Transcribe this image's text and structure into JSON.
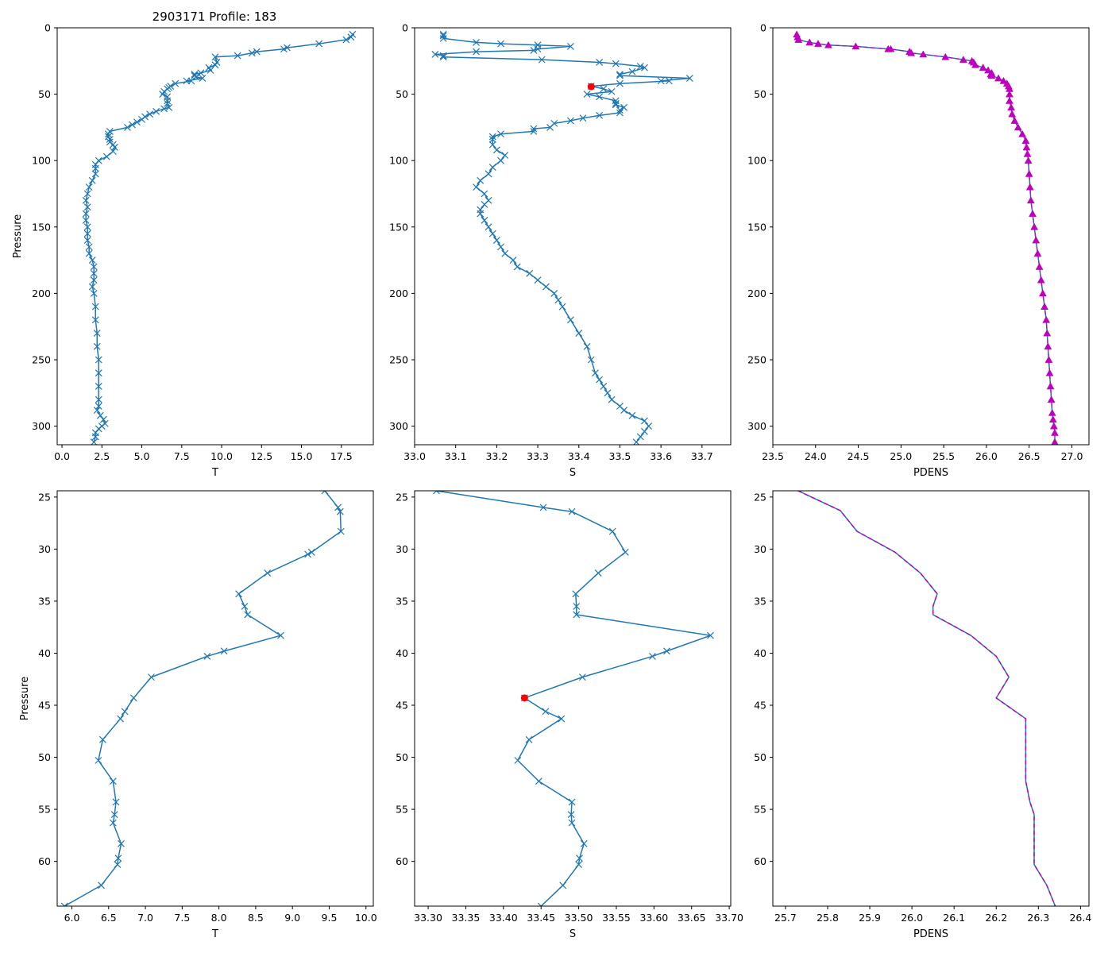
{
  "figure_title": "2903171 Profile: 183",
  "colors": {
    "line": "#1f77b4",
    "marker_x": "#1f77b4",
    "highlight": "#ff0000",
    "density_marker": "#bf00bf",
    "density_dash": "#bf00bf"
  },
  "chart_data": [
    {
      "id": "top-temperature",
      "type": "line",
      "title": "2903171 Profile: 183",
      "xlabel": "T",
      "ylabel": "Pressure",
      "xlim": [
        -0.3,
        19.5
      ],
      "ylim": [
        314,
        0
      ],
      "xticks": [
        0.0,
        2.5,
        5.0,
        7.5,
        10.0,
        12.5,
        15.0,
        17.5
      ],
      "xtick_labels": [
        "0.0",
        "2.5",
        "5.0",
        "7.5",
        "10.0",
        "12.5",
        "15.0",
        "17.5"
      ],
      "yticks": [
        0,
        50,
        100,
        150,
        200,
        250,
        300
      ],
      "ytick_labels": [
        "0",
        "50",
        "100",
        "150",
        "200",
        "250",
        "300"
      ],
      "marker": "x",
      "series": [
        {
          "name": "T",
          "x": [
            18.2,
            18.1,
            17.8,
            16.1,
            14.1,
            13.9,
            12.2,
            11.9,
            11.0,
            9.6,
            9.7,
            9.6,
            9.2,
            9.3,
            8.7,
            8.3,
            8.3,
            8.4,
            8.8,
            7.8,
            8.1,
            7.1,
            6.8,
            6.7,
            6.6,
            6.4,
            6.3,
            6.6,
            6.6,
            6.6,
            6.7,
            6.4,
            5.9,
            5.5,
            5.2,
            5.0,
            4.7,
            4.4,
            4.1,
            3.0,
            2.9,
            2.9,
            3.0,
            3.0,
            3.2,
            3.3,
            3.2,
            2.8,
            2.3,
            2.1,
            2.1,
            2.1,
            1.9,
            1.7,
            1.6,
            1.5,
            1.6,
            1.5,
            1.5,
            1.6,
            1.6,
            1.6,
            1.7,
            1.7,
            1.9,
            2.0,
            2.0,
            2.0,
            1.9,
            2.0,
            2.1,
            2.1,
            2.2,
            2.2,
            2.3,
            2.3,
            2.3,
            2.3,
            2.3,
            2.2,
            2.4,
            2.6,
            2.7,
            2.5,
            2.3,
            2.1,
            2.1,
            2.0
          ],
          "y": [
            5,
            7,
            9,
            12,
            15,
            16,
            18,
            19,
            21,
            22,
            26,
            28,
            30,
            32,
            34,
            35,
            36,
            37,
            38,
            40,
            40,
            42,
            44,
            45,
            46,
            48,
            50,
            52,
            55,
            57,
            60,
            61,
            63,
            65,
            67,
            69,
            71,
            73,
            75,
            78,
            80,
            82,
            84,
            86,
            88,
            90,
            93,
            97,
            100,
            103,
            106,
            110,
            115,
            120,
            125,
            130,
            135,
            140,
            145,
            150,
            155,
            160,
            165,
            170,
            175,
            180,
            185,
            190,
            195,
            200,
            210,
            220,
            230,
            240,
            250,
            260,
            270,
            280,
            285,
            288,
            292,
            295,
            298,
            300,
            302,
            305,
            308,
            312
          ]
        }
      ]
    },
    {
      "id": "top-salinity",
      "type": "line",
      "xlabel": "S",
      "ylabel": "",
      "xlim": [
        33.0,
        33.77
      ],
      "ylim": [
        314,
        0
      ],
      "xticks": [
        33.0,
        33.1,
        33.2,
        33.3,
        33.4,
        33.5,
        33.6,
        33.7
      ],
      "xtick_labels": [
        "33.0",
        "33.1",
        "33.2",
        "33.3",
        "33.4",
        "33.5",
        "33.6",
        "33.7"
      ],
      "yticks": [
        0,
        50,
        100,
        150,
        200,
        250,
        300
      ],
      "ytick_labels": [
        "0",
        "50",
        "100",
        "150",
        "200",
        "250",
        "300"
      ],
      "marker": "x",
      "series": [
        {
          "name": "S",
          "x": [
            33.07,
            33.07,
            33.07,
            33.15,
            33.21,
            33.3,
            33.38,
            33.3,
            33.29,
            33.15,
            33.05,
            33.07,
            33.07,
            33.31,
            33.45,
            33.49,
            33.55,
            33.56,
            33.53,
            33.5,
            33.5,
            33.67,
            33.6,
            33.62,
            33.5,
            33.43,
            33.46,
            33.48,
            33.42,
            33.45,
            33.49,
            33.49,
            33.49,
            33.51,
            33.5,
            33.5,
            33.45,
            33.41,
            33.38,
            33.34,
            33.33,
            33.29,
            33.29,
            33.21,
            33.19,
            33.19,
            33.19,
            33.2,
            33.22,
            33.21,
            33.19,
            33.18,
            33.16,
            33.15,
            33.17,
            33.18,
            33.17,
            33.16,
            33.16,
            33.17,
            33.18,
            33.19,
            33.2,
            33.21,
            33.22,
            33.24,
            33.25,
            33.28,
            33.3,
            33.32,
            33.34,
            33.35,
            33.36,
            33.38,
            33.4,
            33.42,
            33.43,
            33.44,
            33.45,
            33.46,
            33.47,
            33.48,
            33.5,
            33.51,
            33.53,
            33.56,
            33.57,
            33.56,
            33.55,
            33.54
          ],
          "y": [
            5,
            6,
            8,
            11,
            12,
            13,
            14,
            16,
            17,
            18,
            20,
            21,
            22,
            24,
            26,
            27,
            29,
            30,
            33,
            35,
            36,
            38,
            40,
            40,
            42,
            44,
            46,
            48,
            50,
            52,
            55,
            57,
            58,
            60,
            62,
            64,
            66,
            68,
            70,
            72,
            75,
            76,
            78,
            80,
            82,
            84,
            88,
            92,
            96,
            100,
            105,
            110,
            115,
            120,
            125,
            130,
            133,
            137,
            140,
            145,
            150,
            155,
            160,
            165,
            170,
            175,
            180,
            185,
            190,
            195,
            200,
            205,
            210,
            220,
            230,
            240,
            250,
            260,
            265,
            270,
            275,
            280,
            285,
            288,
            292,
            296,
            300,
            304,
            308,
            312
          ]
        }
      ],
      "highlight_point": {
        "x": 33.43,
        "y": 44.3
      }
    },
    {
      "id": "top-density",
      "type": "line",
      "xlabel": "PDENS",
      "ylabel": "",
      "xlim": [
        23.5,
        27.2
      ],
      "ylim": [
        314,
        0
      ],
      "xticks": [
        23.5,
        24.0,
        24.5,
        25.0,
        25.5,
        26.0,
        26.5,
        27.0
      ],
      "xtick_labels": [
        "23.5",
        "24.0",
        "24.5",
        "25.0",
        "25.5",
        "26.0",
        "26.5",
        "27.0"
      ],
      "yticks": [
        0,
        50,
        100,
        150,
        200,
        250,
        300
      ],
      "ytick_labels": [
        "0",
        "50",
        "100",
        "150",
        "200",
        "250",
        "300"
      ],
      "marker": "^",
      "series": [
        {
          "name": "PDENS",
          "x": [
            23.78,
            23.79,
            23.8,
            23.93,
            24.03,
            24.15,
            24.47,
            24.85,
            24.88,
            25.1,
            25.12,
            25.26,
            25.52,
            25.73,
            25.83,
            25.85,
            25.87,
            25.96,
            26.02,
            26.06,
            26.05,
            26.06,
            26.14,
            26.2,
            26.24,
            26.26,
            26.27,
            26.27,
            26.27,
            26.29,
            26.3,
            26.33,
            26.37,
            26.42,
            26.46,
            26.47,
            26.48,
            26.49,
            26.5,
            26.51,
            26.52,
            26.54,
            26.56,
            26.58,
            26.6,
            26.62,
            26.64,
            26.66,
            26.68,
            26.7,
            26.71,
            26.72,
            26.73,
            26.74,
            26.75,
            26.76,
            26.77,
            26.78,
            26.79,
            26.8,
            26.8
          ],
          "y": [
            5,
            7,
            9,
            11,
            12,
            13,
            14,
            16,
            16,
            18,
            19,
            20,
            22,
            24,
            25,
            26,
            28,
            30,
            32,
            34,
            35,
            36,
            38,
            40,
            42,
            44,
            46,
            50,
            55,
            60,
            65,
            70,
            75,
            80,
            85,
            90,
            95,
            100,
            110,
            120,
            130,
            140,
            150,
            160,
            170,
            180,
            190,
            200,
            210,
            220,
            230,
            240,
            250,
            260,
            270,
            280,
            290,
            295,
            300,
            305,
            312
          ]
        }
      ]
    },
    {
      "id": "bottom-temperature",
      "type": "line",
      "xlabel": "T",
      "ylabel": "Pressure",
      "xlim": [
        5.8,
        10.1
      ],
      "ylim": [
        64.3,
        24.4
      ],
      "xticks": [
        6.0,
        6.5,
        7.0,
        7.5,
        8.0,
        8.5,
        9.0,
        9.5,
        10.0
      ],
      "xtick_labels": [
        "6.0",
        "6.5",
        "7.0",
        "7.5",
        "8.0",
        "8.5",
        "9.0",
        "9.5",
        "10.0"
      ],
      "yticks": [
        25,
        30,
        35,
        40,
        45,
        50,
        55,
        60
      ],
      "ytick_labels": [
        "25",
        "30",
        "35",
        "40",
        "45",
        "50",
        "55",
        "60"
      ],
      "marker": "x",
      "series": [
        {
          "name": "T",
          "x": [
            9.44,
            9.62,
            9.65,
            9.66,
            9.26,
            9.21,
            8.66,
            8.27,
            8.35,
            8.39,
            8.84,
            8.07,
            7.84,
            7.08,
            6.84,
            6.72,
            6.66,
            6.42,
            6.36,
            6.56,
            6.6,
            6.58,
            6.56,
            6.67,
            6.63,
            6.62,
            6.4,
            5.9
          ],
          "y": [
            24.4,
            26.0,
            26.4,
            28.3,
            30.3,
            30.5,
            32.3,
            34.3,
            35.5,
            36.3,
            38.3,
            39.8,
            40.3,
            42.3,
            44.3,
            45.6,
            46.3,
            48.3,
            50.3,
            52.3,
            54.3,
            55.5,
            56.3,
            58.3,
            59.7,
            60.3,
            62.3,
            64.3
          ]
        }
      ]
    },
    {
      "id": "bottom-salinity",
      "type": "line",
      "xlabel": "S",
      "ylabel": "",
      "xlim": [
        33.282,
        33.702
      ],
      "ylim": [
        64.3,
        24.4
      ],
      "xticks": [
        33.3,
        33.35,
        33.4,
        33.45,
        33.5,
        33.55,
        33.6,
        33.65,
        33.7
      ],
      "xtick_labels": [
        "33.30",
        "33.35",
        "33.40",
        "33.45",
        "33.50",
        "33.55",
        "33.60",
        "33.65",
        "33.70"
      ],
      "yticks": [
        25,
        30,
        35,
        40,
        45,
        50,
        55,
        60
      ],
      "ytick_labels": [
        "25",
        "30",
        "35",
        "40",
        "45",
        "50",
        "55",
        "60"
      ],
      "marker": "x",
      "series": [
        {
          "name": "S",
          "x": [
            33.311,
            33.453,
            33.491,
            33.545,
            33.562,
            33.526,
            33.496,
            33.497,
            33.497,
            33.675,
            33.617,
            33.598,
            33.505,
            33.428,
            33.456,
            33.477,
            33.434,
            33.419,
            33.447,
            33.491,
            33.49,
            33.491,
            33.507,
            33.501,
            33.5,
            33.479,
            33.45
          ],
          "y": [
            24.4,
            26.0,
            26.4,
            28.3,
            30.3,
            32.3,
            34.3,
            35.5,
            36.3,
            38.3,
            39.8,
            40.3,
            42.3,
            44.3,
            45.6,
            46.3,
            48.3,
            50.3,
            52.3,
            54.3,
            55.5,
            56.3,
            58.3,
            59.7,
            60.3,
            62.3,
            64.3
          ]
        }
      ],
      "highlight_point": {
        "x": 33.428,
        "y": 44.3
      }
    },
    {
      "id": "bottom-density",
      "type": "line",
      "xlabel": "PDENS",
      "ylabel": "",
      "xlim": [
        25.67,
        26.42
      ],
      "ylim": [
        64.3,
        24.4
      ],
      "xticks": [
        25.7,
        25.8,
        25.9,
        26.0,
        26.1,
        26.2,
        26.3,
        26.4
      ],
      "xtick_labels": [
        "25.7",
        "25.8",
        "25.9",
        "26.0",
        "26.1",
        "26.2",
        "26.3",
        "26.4"
      ],
      "yticks": [
        25,
        30,
        35,
        40,
        45,
        50,
        55,
        60
      ],
      "ytick_labels": [
        "25",
        "30",
        "35",
        "40",
        "45",
        "50",
        "55",
        "60"
      ],
      "marker": "none",
      "series": [
        {
          "name": "PDENS",
          "x": [
            25.73,
            25.83,
            25.87,
            25.96,
            26.02,
            26.06,
            26.05,
            26.05,
            26.14,
            26.2,
            26.23,
            26.2,
            26.27,
            26.27,
            26.27,
            26.27,
            26.28,
            26.29,
            26.29,
            26.29,
            26.29,
            26.29,
            26.32,
            26.34
          ],
          "y": [
            24.4,
            26.3,
            28.3,
            30.3,
            32.3,
            34.3,
            35.5,
            36.3,
            38.3,
            40.3,
            42.3,
            44.3,
            46.3,
            48.3,
            50.3,
            52.3,
            54.3,
            55.5,
            56.3,
            58.3,
            59.7,
            60.3,
            62.3,
            64.3
          ]
        }
      ]
    }
  ]
}
